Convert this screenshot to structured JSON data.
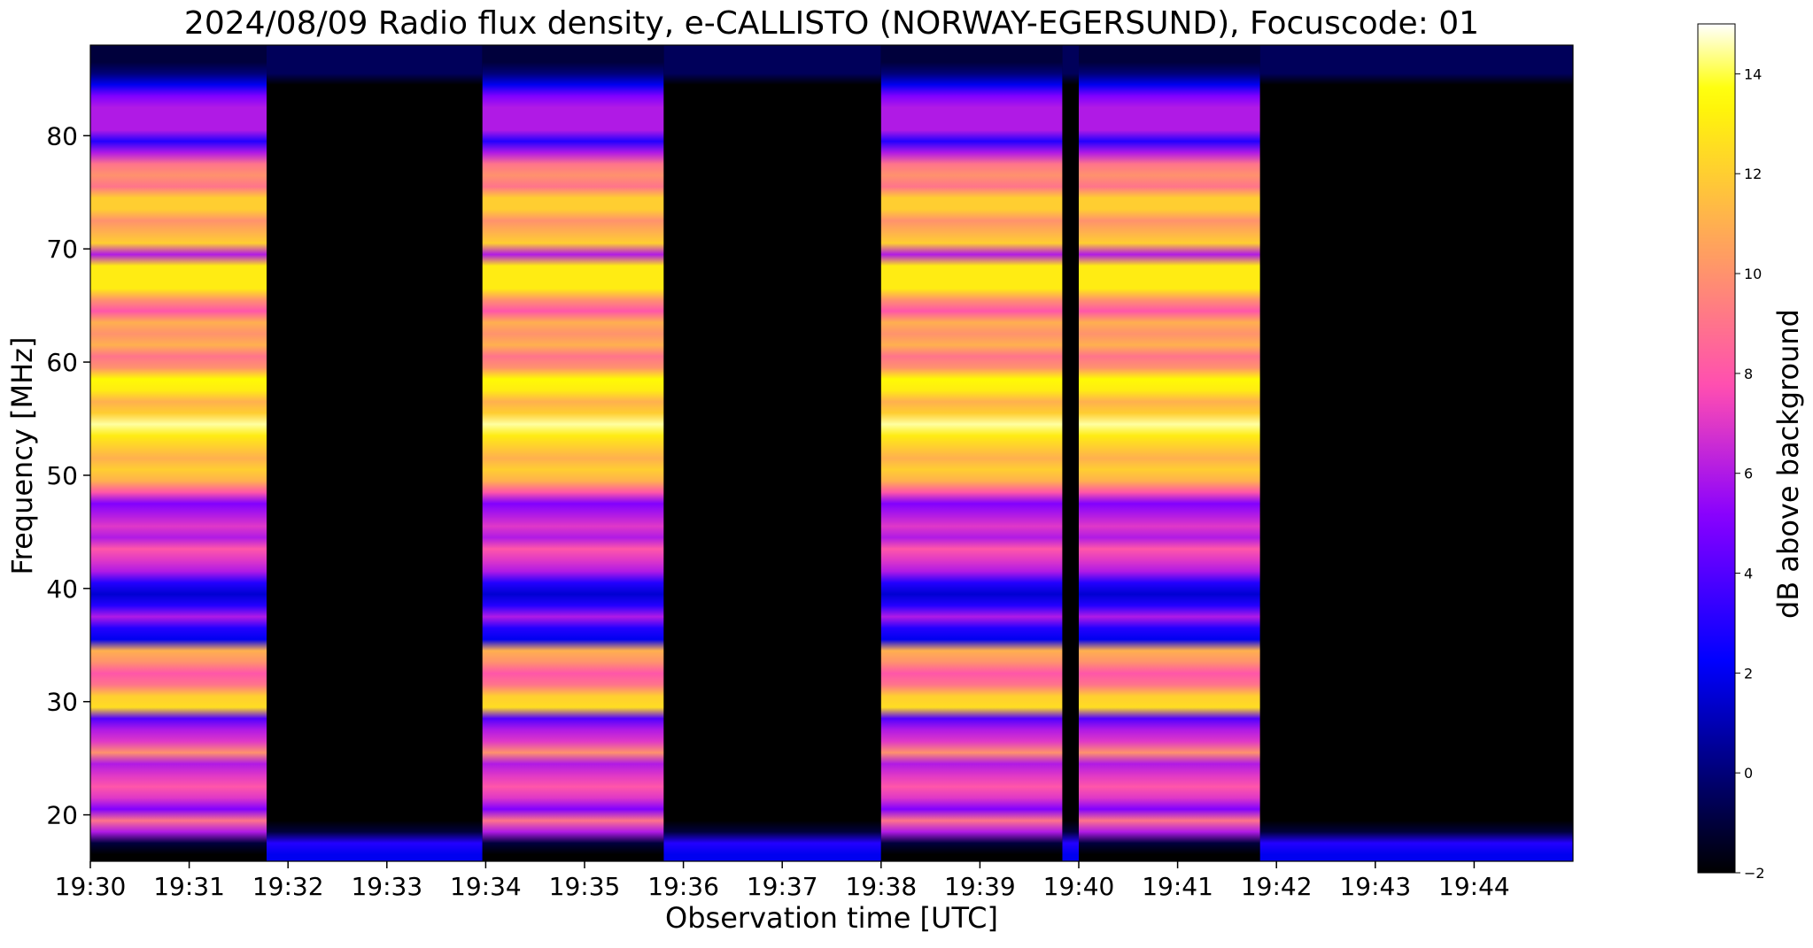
{
  "chart_data": {
    "type": "heatmap",
    "title": "2024/08/09  Radio flux density, e-CALLISTO (NORWAY-EGERSUND), Focuscode: 01",
    "xlabel": "Observation time [UTC]",
    "ylabel": "Frequency [MHz]",
    "colorbar_label": "dB above background",
    "colormap": "gnuplot2",
    "xlim": [
      "19:30:00",
      "19:45:00"
    ],
    "ylim": [
      15.9,
      88.0
    ],
    "clim": [
      -2,
      15
    ],
    "x_ticks": [
      "19:30",
      "19:31",
      "19:32",
      "19:33",
      "19:34",
      "19:35",
      "19:36",
      "19:37",
      "19:38",
      "19:39",
      "19:40",
      "19:41",
      "19:42",
      "19:43",
      "19:44"
    ],
    "y_ticks": [
      20,
      30,
      40,
      50,
      60,
      70,
      80
    ],
    "colorbar_ticks": [
      -2,
      0,
      2,
      4,
      6,
      8,
      10,
      12,
      14
    ],
    "grid": false,
    "active_time_intervals": [
      [
        "19:30:00",
        "19:31:47"
      ],
      [
        "19:33:58",
        "19:35:48"
      ],
      [
        "19:38:00",
        "19:39:50"
      ],
      [
        "19:40:00",
        "19:41:50"
      ]
    ],
    "frequency_profile_mhz": [
      16.5,
      17.5,
      18.5,
      19.5,
      20.5,
      21.5,
      22.5,
      23.5,
      24.5,
      25.5,
      26.5,
      27.5,
      28.5,
      29.5,
      30.5,
      31.5,
      32.5,
      33.5,
      34.5,
      35.5,
      36.5,
      37.5,
      38.5,
      39.5,
      40.5,
      41.5,
      42.5,
      43.5,
      44.5,
      45.5,
      46.5,
      47.5,
      48.5,
      49.5,
      50.5,
      51.5,
      52.5,
      53.5,
      54.5,
      55.5,
      56.5,
      57.5,
      58.5,
      59.5,
      60.5,
      61.5,
      62.5,
      63.5,
      64.5,
      65.5,
      66.5,
      67.5,
      68.5,
      69.5,
      70.5,
      71.5,
      72.5,
      73.5,
      74.5,
      75.5,
      76.5,
      77.5,
      78.5,
      79.5,
      80.5,
      81.5,
      82.5,
      83.5,
      84.5,
      85.5,
      86.5,
      87.5
    ],
    "profile_active_db": [
      -2,
      -1,
      6,
      9,
      5,
      7,
      8,
      7,
      6,
      10,
      7,
      6,
      4,
      12.5,
      12,
      9,
      8,
      10,
      11,
      2,
      3,
      6,
      3,
      1.5,
      3,
      6,
      7,
      8,
      6,
      7,
      6,
      5,
      8,
      11,
      12,
      11,
      12,
      13,
      14.5,
      12,
      11,
      13,
      13.5,
      10,
      9,
      11,
      10,
      11,
      8,
      10,
      13,
      13,
      13,
      6,
      12,
      11,
      10,
      12,
      12,
      9,
      10,
      9,
      6,
      3,
      6,
      6,
      6,
      5,
      2,
      0,
      -1,
      -1
    ],
    "profile_quiet_db": [
      2,
      3,
      -1,
      -2,
      -2,
      -2,
      -2,
      -2,
      -2,
      -2,
      -2,
      -2,
      -2,
      -2,
      -2,
      -2,
      -2,
      -2,
      -2,
      -2,
      -2,
      -2,
      -2,
      -2,
      -2,
      -2,
      -2,
      -2,
      -2,
      -2,
      -2,
      -2,
      -2,
      -2,
      -2,
      -2,
      -2,
      -2,
      -2,
      -2,
      -2,
      -2,
      -2,
      -2,
      -2,
      -2,
      -2,
      -2,
      -2,
      -2,
      -2,
      -2,
      -2,
      -2,
      -2,
      -2,
      -2,
      -2,
      -2,
      -2,
      -2,
      -2,
      -2,
      -2,
      -2,
      -2,
      -2,
      -2,
      -2,
      -0.5,
      -0.5,
      -0.5
    ]
  }
}
